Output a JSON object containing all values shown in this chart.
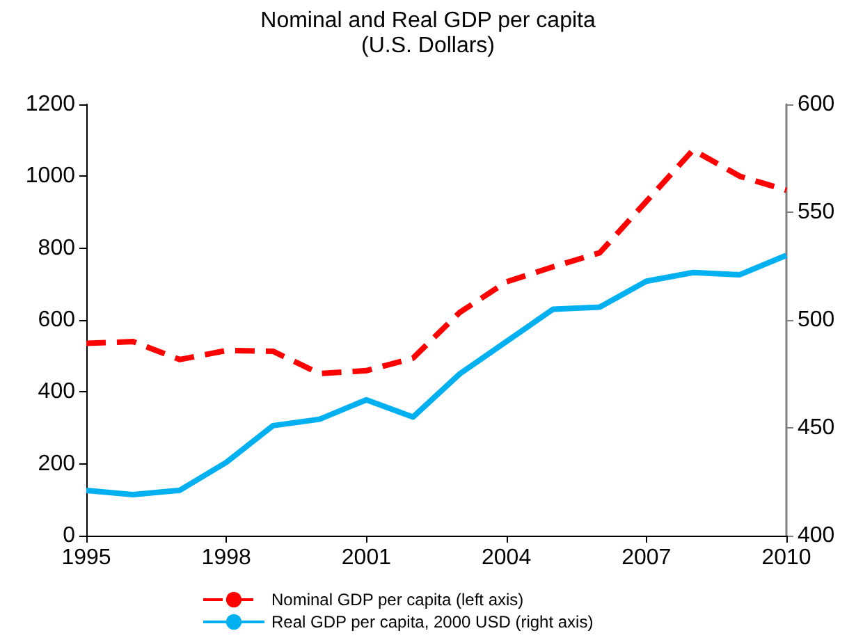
{
  "chart_data": {
    "type": "line",
    "title": "Nominal and Real GDP per capita",
    "subtitle": "(U.S. Dollars)",
    "x": [
      1995,
      1996,
      1997,
      1998,
      1999,
      2000,
      2001,
      2002,
      2003,
      2004,
      2005,
      2006,
      2007,
      2008,
      2009,
      2010
    ],
    "series": [
      {
        "name": "Nominal GDP per capita (left axis)",
        "color": "#ff0000",
        "line_style": "dashed",
        "values": [
          535,
          540,
          490,
          515,
          513,
          451,
          459,
          494,
          621,
          706,
          748,
          787,
          930,
          1073,
          1000,
          961
        ]
      },
      {
        "name": "Real GDP per capita, 2000 USD (right axis)",
        "color": "#00b0f0",
        "line_style": "solid",
        "axis": "y2",
        "values": [
          421,
          419,
          421,
          434,
          451,
          454,
          463,
          455,
          475,
          490,
          505,
          506,
          518,
          522,
          521,
          530
        ]
      }
    ],
    "xlim": [
      1995,
      2010
    ],
    "xticks": [
      1995,
      1998,
      2001,
      2004,
      2007,
      2010
    ],
    "ylim": [
      0,
      1200
    ],
    "yticks": [
      0,
      200,
      400,
      600,
      800,
      1000,
      1200
    ],
    "y2lim": [
      400,
      600
    ],
    "y2ticks": [
      400,
      450,
      500,
      550,
      600
    ],
    "grid": false,
    "legend": "bottom",
    "marker": "none"
  }
}
